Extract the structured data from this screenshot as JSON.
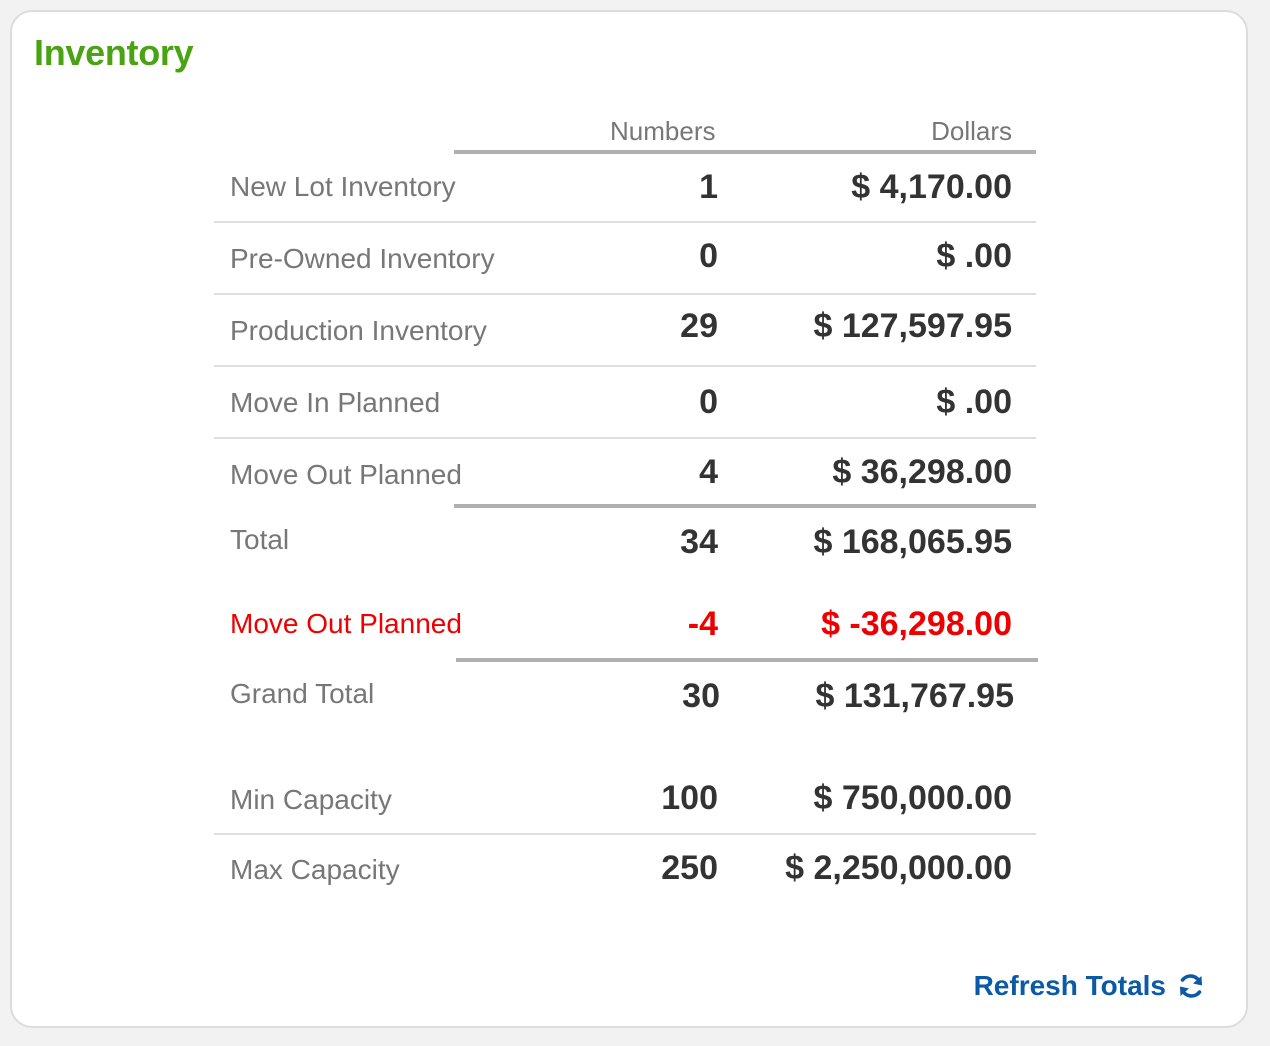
{
  "panel": {
    "title": "Inventory",
    "title_color": "#4aa312",
    "negative_color": "#ee0000",
    "link_color": "#0b5aa6"
  },
  "table": {
    "headers": {
      "numbers": "Numbers",
      "dollars": "Dollars"
    },
    "rows": [
      {
        "label": "New Lot Inventory",
        "numbers": "1",
        "dollars": "$ 4,170.00"
      },
      {
        "label": "Pre-Owned Inventory",
        "numbers": "0",
        "dollars": "$ .00"
      },
      {
        "label": "Production Inventory",
        "numbers": "29",
        "dollars": "$ 127,597.95"
      },
      {
        "label": "Move In Planned",
        "numbers": "0",
        "dollars": "$ .00"
      },
      {
        "label": "Move Out Planned",
        "numbers": "4",
        "dollars": "$ 36,298.00"
      }
    ],
    "total": {
      "label": "Total",
      "numbers": "34",
      "dollars": "$ 168,065.95"
    },
    "adjustment": {
      "label": "Move Out Planned",
      "numbers": "-4",
      "dollars": "$ -36,298.00"
    },
    "grand_total": {
      "label": "Grand Total",
      "numbers": "30",
      "dollars": "$ 131,767.95"
    },
    "capacity": [
      {
        "label": "Min Capacity",
        "numbers": "100",
        "dollars": "$ 750,000.00"
      },
      {
        "label": "Max Capacity",
        "numbers": "250",
        "dollars": "$ 2,250,000.00"
      }
    ]
  },
  "actions": {
    "refresh_label": "Refresh Totals",
    "refresh_icon": "refresh-icon"
  }
}
